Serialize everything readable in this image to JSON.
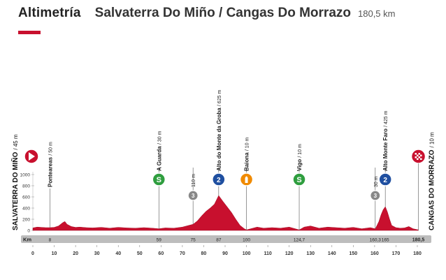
{
  "header": {
    "title": "Altimetría",
    "route": "Salvaterra Do Miño / Cangas Do Morrazo",
    "distance": "180,5 km"
  },
  "colors": {
    "accent": "#c8102e",
    "profile_fill": "#c8102e",
    "sprint_badge": "#2f9e3f",
    "climb_badge": "#1f4fa0",
    "category_badge": "#888888",
    "feed_badge": "#f08a00",
    "distance_bar": "#bdbdbd"
  },
  "chart_data": {
    "type": "area",
    "title": "",
    "xlabel": "",
    "ylabel": "",
    "xlim": [
      0,
      180
    ],
    "ylim": [
      0,
      1000
    ],
    "x_ticks": [
      0,
      10,
      20,
      30,
      40,
      50,
      60,
      70,
      80,
      90,
      100,
      110,
      120,
      130,
      140,
      150,
      160,
      170,
      180
    ],
    "y_ticks": [
      0,
      200,
      400,
      600,
      800,
      1000
    ],
    "distance_bar_label": "Km",
    "series": [
      {
        "x": [
          0,
          2,
          4,
          6,
          8,
          10,
          12,
          14,
          15,
          16,
          18,
          20,
          22,
          25,
          28,
          32,
          36,
          40,
          44,
          48,
          52,
          56,
          59,
          62,
          66,
          70,
          72,
          74,
          75,
          77,
          79,
          81,
          83,
          85,
          87,
          89,
          91,
          93,
          95,
          97,
          99,
          100,
          102,
          105,
          108,
          112,
          116,
          120,
          124.7,
          127,
          130,
          134,
          138,
          142,
          146,
          150,
          154,
          158,
          160.3,
          161,
          162,
          163,
          164,
          165,
          166,
          167,
          168,
          170,
          172,
          174,
          176,
          178,
          180.5
        ],
        "y": [
          45,
          60,
          55,
          50,
          50,
          55,
          80,
          140,
          160,
          110,
          70,
          55,
          60,
          50,
          45,
          55,
          40,
          55,
          45,
          40,
          50,
          40,
          30,
          45,
          40,
          60,
          80,
          100,
          110,
          170,
          260,
          340,
          400,
          470,
          625,
          520,
          420,
          320,
          200,
          90,
          30,
          10,
          30,
          60,
          40,
          50,
          40,
          60,
          10,
          60,
          80,
          40,
          60,
          50,
          40,
          55,
          30,
          50,
          30,
          80,
          160,
          280,
          370,
          425,
          330,
          200,
          90,
          50,
          40,
          45,
          70,
          30,
          10
        ]
      }
    ],
    "start": {
      "label": "SALVATERRA DO MIÑO",
      "alt": "/ 45 m",
      "km": 0
    },
    "finish": {
      "label": "CANGAS DO MORRAZO",
      "alt": "/ 10 m",
      "km": 180.5
    },
    "points": [
      {
        "km": 8,
        "km_label": "8",
        "name": "Ponteareas",
        "alt": "/ 50 m",
        "badge": "none"
      },
      {
        "km": 59,
        "km_label": "59",
        "name": "A Guarda",
        "alt": "/ 30 m",
        "badge": "sprint",
        "badge_text": "S"
      },
      {
        "km": 75,
        "km_label": "75",
        "name": "",
        "alt": "110 m",
        "badge": "category",
        "badge_text": "3"
      },
      {
        "km": 87,
        "km_label": "87",
        "name": "Alto do Monte da Groba",
        "alt": "/ 625 m",
        "badge": "climb",
        "badge_text": "2"
      },
      {
        "km": 100,
        "km_label": "100",
        "name": "Baiona",
        "alt": "/ 10 m",
        "badge": "feed",
        "badge_text": ""
      },
      {
        "km": 124.7,
        "km_label": "124,7",
        "name": "Vigo",
        "alt": "/ 10 m",
        "badge": "sprint",
        "badge_text": "S"
      },
      {
        "km": 160.3,
        "km_label": "160,3",
        "name": "",
        "alt": "30 m",
        "badge": "category",
        "badge_text": "3"
      },
      {
        "km": 165,
        "km_label": "165",
        "name": "Alto Monte Faro",
        "alt": "/ 425 m",
        "badge": "climb",
        "badge_text": "2"
      }
    ],
    "finish_km_label": "180,5"
  }
}
